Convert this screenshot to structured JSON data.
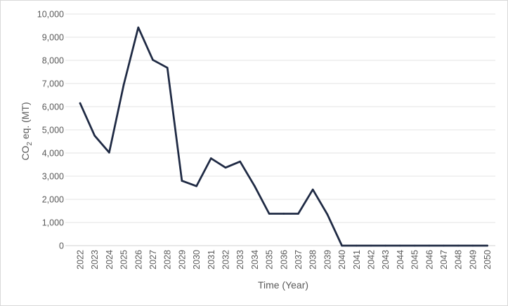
{
  "chart_data": {
    "type": "line",
    "title": "",
    "xlabel": "Time (Year)",
    "ylabel": {
      "prefix": "CO",
      "subscript": "2",
      "suffix": " eq. (MT)"
    },
    "ylim": [
      0,
      10000
    ],
    "y_ticks": [
      0,
      1000,
      2000,
      3000,
      4000,
      5000,
      6000,
      7000,
      8000,
      9000,
      10000
    ],
    "y_tick_labels": [
      "0",
      "1,000",
      "2,000",
      "3,000",
      "4,000",
      "5,000",
      "6,000",
      "7,000",
      "8,000",
      "9,000",
      "10,000"
    ],
    "grid": true,
    "legend": "none",
    "line_color": "#1f2a44",
    "categories": [
      "2022",
      "2023",
      "2024",
      "2025",
      "2026",
      "2027",
      "2028",
      "2029",
      "2030",
      "2031",
      "2032",
      "2033",
      "2034",
      "2035",
      "2036",
      "2037",
      "2038",
      "2039",
      "2040",
      "2041",
      "2042",
      "2043",
      "2044",
      "2045",
      "2046",
      "2047",
      "2048",
      "2049",
      "2050"
    ],
    "values": [
      6150,
      4750,
      4020,
      6950,
      9420,
      8020,
      7680,
      2800,
      2570,
      3770,
      3370,
      3630,
      2570,
      1380,
      1380,
      1380,
      2420,
      1350,
      0,
      0,
      0,
      0,
      0,
      0,
      0,
      0,
      0,
      0,
      0
    ]
  }
}
